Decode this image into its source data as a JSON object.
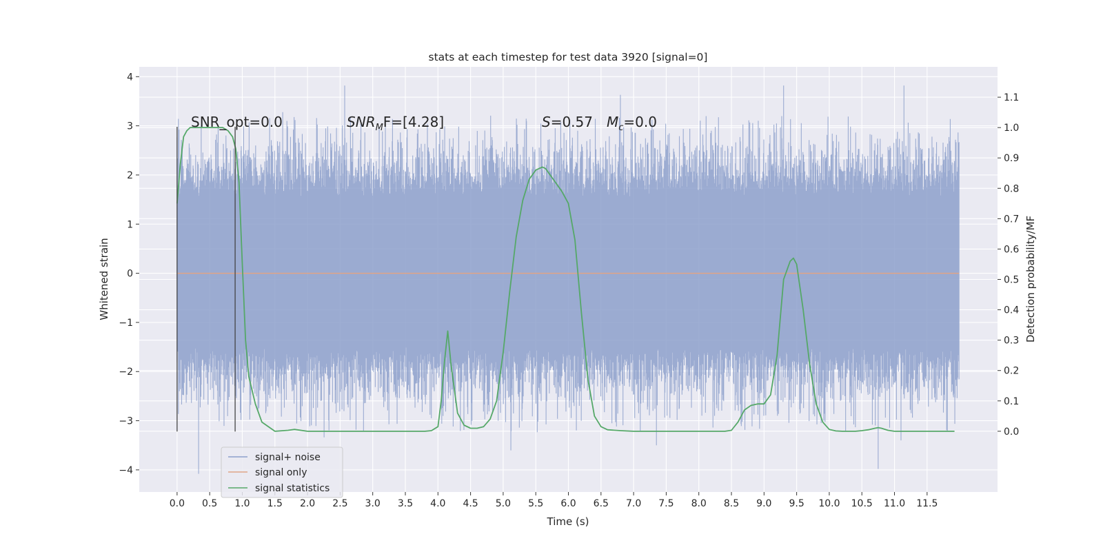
{
  "chart_data": {
    "type": "line",
    "title": "stats at each timestep for test data 3920 [signal=0]",
    "xlabel": "Time (s)",
    "ylabel_left": "Whitened strain",
    "ylabel_right": "Detection probability/MF",
    "xlim": [
      -0.58,
      12.58
    ],
    "ylim_left": [
      -4.45,
      4.2
    ],
    "ylim_right": [
      -0.2,
      1.2
    ],
    "xticks": [
      "0.0",
      "0.5",
      "1.0",
      "1.5",
      "2.0",
      "2.5",
      "3.0",
      "3.5",
      "4.0",
      "4.5",
      "5.0",
      "5.5",
      "6.0",
      "6.5",
      "7.0",
      "7.5",
      "8.0",
      "8.5",
      "9.0",
      "9.5",
      "10.0",
      "10.5",
      "11.0",
      "11.5"
    ],
    "yticks_left": [
      "−4",
      "−3",
      "−2",
      "−1",
      "0",
      "1",
      "2",
      "3",
      "4"
    ],
    "yticks_right": [
      "0.0",
      "0.1",
      "0.2",
      "0.3",
      "0.4",
      "0.5",
      "0.6",
      "0.7",
      "0.8",
      "0.9",
      "1.0",
      "1.1"
    ],
    "grid": true,
    "legend_position": "lower-left",
    "colors": {
      "background": "#eaeaf2",
      "grid": "#ffffff",
      "noise": "#8da0cb",
      "signal_only": "#e0a587",
      "statistics": "#55a868",
      "marker_lines": "#444444"
    },
    "series": [
      {
        "name": "signal+ noise",
        "kind": "dense_noise",
        "x_range": [
          0.0,
          11.99
        ],
        "band": [
          -2.2,
          2.3
        ],
        "peak_max": 3.82,
        "peak_min": -4.08
      },
      {
        "name": "signal only",
        "x": [
          0.0,
          11.99
        ],
        "y": [
          0.0,
          0.0
        ]
      },
      {
        "name": "signal statistics",
        "x": [
          0.0,
          0.05,
          0.1,
          0.15,
          0.2,
          0.3,
          0.4,
          0.5,
          0.6,
          0.7,
          0.78,
          0.85,
          0.9,
          0.95,
          1.0,
          1.05,
          1.1,
          1.2,
          1.3,
          1.5,
          1.7,
          1.8,
          2.0,
          3.0,
          3.8,
          3.9,
          4.0,
          4.05,
          4.1,
          4.15,
          4.2,
          4.3,
          4.4,
          4.5,
          4.6,
          4.7,
          4.8,
          4.9,
          5.0,
          5.1,
          5.2,
          5.3,
          5.4,
          5.5,
          5.6,
          5.65,
          5.7,
          5.8,
          5.9,
          6.0,
          6.1,
          6.2,
          6.3,
          6.4,
          6.5,
          6.6,
          6.8,
          7.0,
          7.5,
          8.0,
          8.4,
          8.5,
          8.6,
          8.7,
          8.8,
          8.9,
          9.0,
          9.1,
          9.2,
          9.3,
          9.4,
          9.45,
          9.5,
          9.6,
          9.7,
          9.8,
          9.9,
          10.0,
          10.1,
          10.2,
          10.4,
          10.5,
          10.6,
          10.7,
          10.75,
          10.8,
          10.9,
          11.0,
          11.5,
          11.92
        ],
        "y": [
          0.75,
          0.88,
          0.97,
          0.99,
          1.0,
          1.0,
          1.0,
          1.0,
          1.0,
          1.0,
          0.99,
          0.97,
          0.93,
          0.82,
          0.55,
          0.3,
          0.18,
          0.09,
          0.03,
          0.0,
          0.003,
          0.006,
          0.0,
          0.0,
          0.0,
          0.002,
          0.015,
          0.1,
          0.23,
          0.33,
          0.22,
          0.06,
          0.02,
          0.01,
          0.01,
          0.015,
          0.04,
          0.1,
          0.26,
          0.46,
          0.64,
          0.76,
          0.83,
          0.86,
          0.87,
          0.865,
          0.85,
          0.82,
          0.79,
          0.75,
          0.63,
          0.39,
          0.17,
          0.05,
          0.015,
          0.005,
          0.002,
          0.0,
          0.0,
          0.0,
          0.0,
          0.003,
          0.03,
          0.07,
          0.085,
          0.09,
          0.09,
          0.12,
          0.25,
          0.5,
          0.56,
          0.57,
          0.55,
          0.4,
          0.22,
          0.09,
          0.03,
          0.006,
          0.001,
          0.0,
          0.0,
          0.002,
          0.005,
          0.01,
          0.012,
          0.01,
          0.003,
          0.0,
          0.0,
          0.0
        ]
      }
    ],
    "vlines": [
      0.0,
      0.89
    ],
    "annotations": [
      {
        "name": "snr-opt",
        "text": "SNR_opt=0.0"
      },
      {
        "name": "snr-mf",
        "base": "SNR",
        "sub": "M",
        "rest": "F=[4.28]"
      },
      {
        "name": "stat-s",
        "base": "S",
        "rest": "=0.57"
      },
      {
        "name": "stat-mc",
        "base": "M",
        "sub": "c",
        "rest": "=0.0"
      }
    ]
  }
}
